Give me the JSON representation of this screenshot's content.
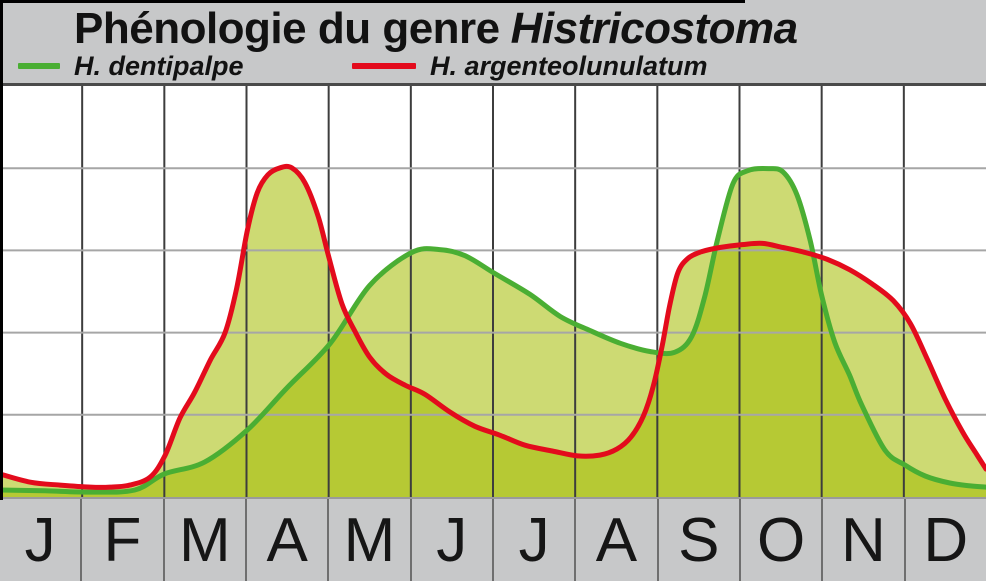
{
  "header": {
    "title_regular": "Phénologie du genre",
    "title_italic": "Histricostoma",
    "background": "#c7c8c9"
  },
  "legend": [
    {
      "name": "H. dentipalpe",
      "color": "#4aae33"
    },
    {
      "name": "H. argenteolunulatum",
      "color": "#e30b1c"
    }
  ],
  "months": [
    "J",
    "F",
    "M",
    "A",
    "M",
    "J",
    "J",
    "A",
    "S",
    "O",
    "N",
    "D"
  ],
  "chart_data": {
    "type": "area",
    "title": "Phénologie du genre Histricostoma",
    "xlabel": "",
    "ylabel": "",
    "x_range_months": [
      0,
      12
    ],
    "y_range_relative": [
      0,
      100
    ],
    "x_tick_labels": [
      "J",
      "F",
      "M",
      "A",
      "M",
      "J",
      "J",
      "A",
      "S",
      "O",
      "N",
      "D"
    ],
    "grid": {
      "v_divisions": 12,
      "h_divisions": 5,
      "vline_color": "#3d3d3d",
      "hline_color": "#a6a6a6"
    },
    "fill_color": "#a4bc00",
    "fill_opacity": 0.55,
    "stroke_width": 5,
    "legend_position": "top",
    "series": [
      {
        "name": "H. dentipalpe",
        "color": "#4aae33",
        "points": [
          [
            0,
            1.7
          ],
          [
            0.55,
            1.5
          ],
          [
            1.1,
            1.2
          ],
          [
            1.64,
            1.7
          ],
          [
            2.0,
            5.6
          ],
          [
            2.49,
            8.5
          ],
          [
            3.01,
            16.3
          ],
          [
            3.49,
            26.5
          ],
          [
            4.02,
            37.4
          ],
          [
            4.5,
            51.5
          ],
          [
            5.01,
            59.5
          ],
          [
            5.35,
            60.2
          ],
          [
            5.66,
            58.7
          ],
          [
            6.02,
            54.4
          ],
          [
            6.45,
            49.3
          ],
          [
            6.82,
            43.9
          ],
          [
            7.18,
            40.5
          ],
          [
            7.55,
            37.4
          ],
          [
            7.91,
            35.4
          ],
          [
            8.21,
            35.2
          ],
          [
            8.42,
            39.1
          ],
          [
            8.58,
            49.0
          ],
          [
            8.73,
            62.4
          ],
          [
            8.92,
            76.2
          ],
          [
            9.1,
            79.4
          ],
          [
            9.35,
            79.9
          ],
          [
            9.53,
            79.1
          ],
          [
            9.7,
            73.5
          ],
          [
            9.86,
            62.4
          ],
          [
            10.0,
            49.0
          ],
          [
            10.16,
            37.6
          ],
          [
            10.34,
            29.6
          ],
          [
            10.49,
            22.3
          ],
          [
            10.77,
            11.4
          ],
          [
            11.01,
            7.8
          ],
          [
            11.26,
            5.1
          ],
          [
            11.56,
            3.4
          ],
          [
            11.81,
            2.7
          ],
          [
            12.0,
            2.4
          ]
        ]
      },
      {
        "name": "H. argenteolunulatum",
        "color": "#e30b1c",
        "points": [
          [
            0,
            5.6
          ],
          [
            0.37,
            3.6
          ],
          [
            0.73,
            2.9
          ],
          [
            1.1,
            2.4
          ],
          [
            1.34,
            2.4
          ],
          [
            1.58,
            2.9
          ],
          [
            1.83,
            4.9
          ],
          [
            2.01,
            10.2
          ],
          [
            2.19,
            19.2
          ],
          [
            2.37,
            25.5
          ],
          [
            2.56,
            33.3
          ],
          [
            2.74,
            40.0
          ],
          [
            2.88,
            50.7
          ],
          [
            3.01,
            64.8
          ],
          [
            3.13,
            74.0
          ],
          [
            3.26,
            78.4
          ],
          [
            3.41,
            80.1
          ],
          [
            3.55,
            80.1
          ],
          [
            3.71,
            76.5
          ],
          [
            3.87,
            68.4
          ],
          [
            4.0,
            58.5
          ],
          [
            4.16,
            47.1
          ],
          [
            4.32,
            40.3
          ],
          [
            4.5,
            34.0
          ],
          [
            4.7,
            29.9
          ],
          [
            4.93,
            27.2
          ],
          [
            5.17,
            25.0
          ],
          [
            5.48,
            20.6
          ],
          [
            5.78,
            17.2
          ],
          [
            6.09,
            15.0
          ],
          [
            6.39,
            12.6
          ],
          [
            6.72,
            11.2
          ],
          [
            7.03,
            10.0
          ],
          [
            7.3,
            10.2
          ],
          [
            7.51,
            11.7
          ],
          [
            7.68,
            14.6
          ],
          [
            7.83,
            19.7
          ],
          [
            7.95,
            26.9
          ],
          [
            8.06,
            36.9
          ],
          [
            8.15,
            46.6
          ],
          [
            8.25,
            54.6
          ],
          [
            8.37,
            58.0
          ],
          [
            8.54,
            59.7
          ],
          [
            8.76,
            60.7
          ],
          [
            9.03,
            61.4
          ],
          [
            9.28,
            61.7
          ],
          [
            9.53,
            60.7
          ],
          [
            9.8,
            59.5
          ],
          [
            10.07,
            57.8
          ],
          [
            10.34,
            55.3
          ],
          [
            10.61,
            51.9
          ],
          [
            10.87,
            47.8
          ],
          [
            11.08,
            42.2
          ],
          [
            11.29,
            33.3
          ],
          [
            11.5,
            24.0
          ],
          [
            11.71,
            16.0
          ],
          [
            11.87,
            10.9
          ],
          [
            12.0,
            6.8
          ]
        ]
      }
    ]
  }
}
